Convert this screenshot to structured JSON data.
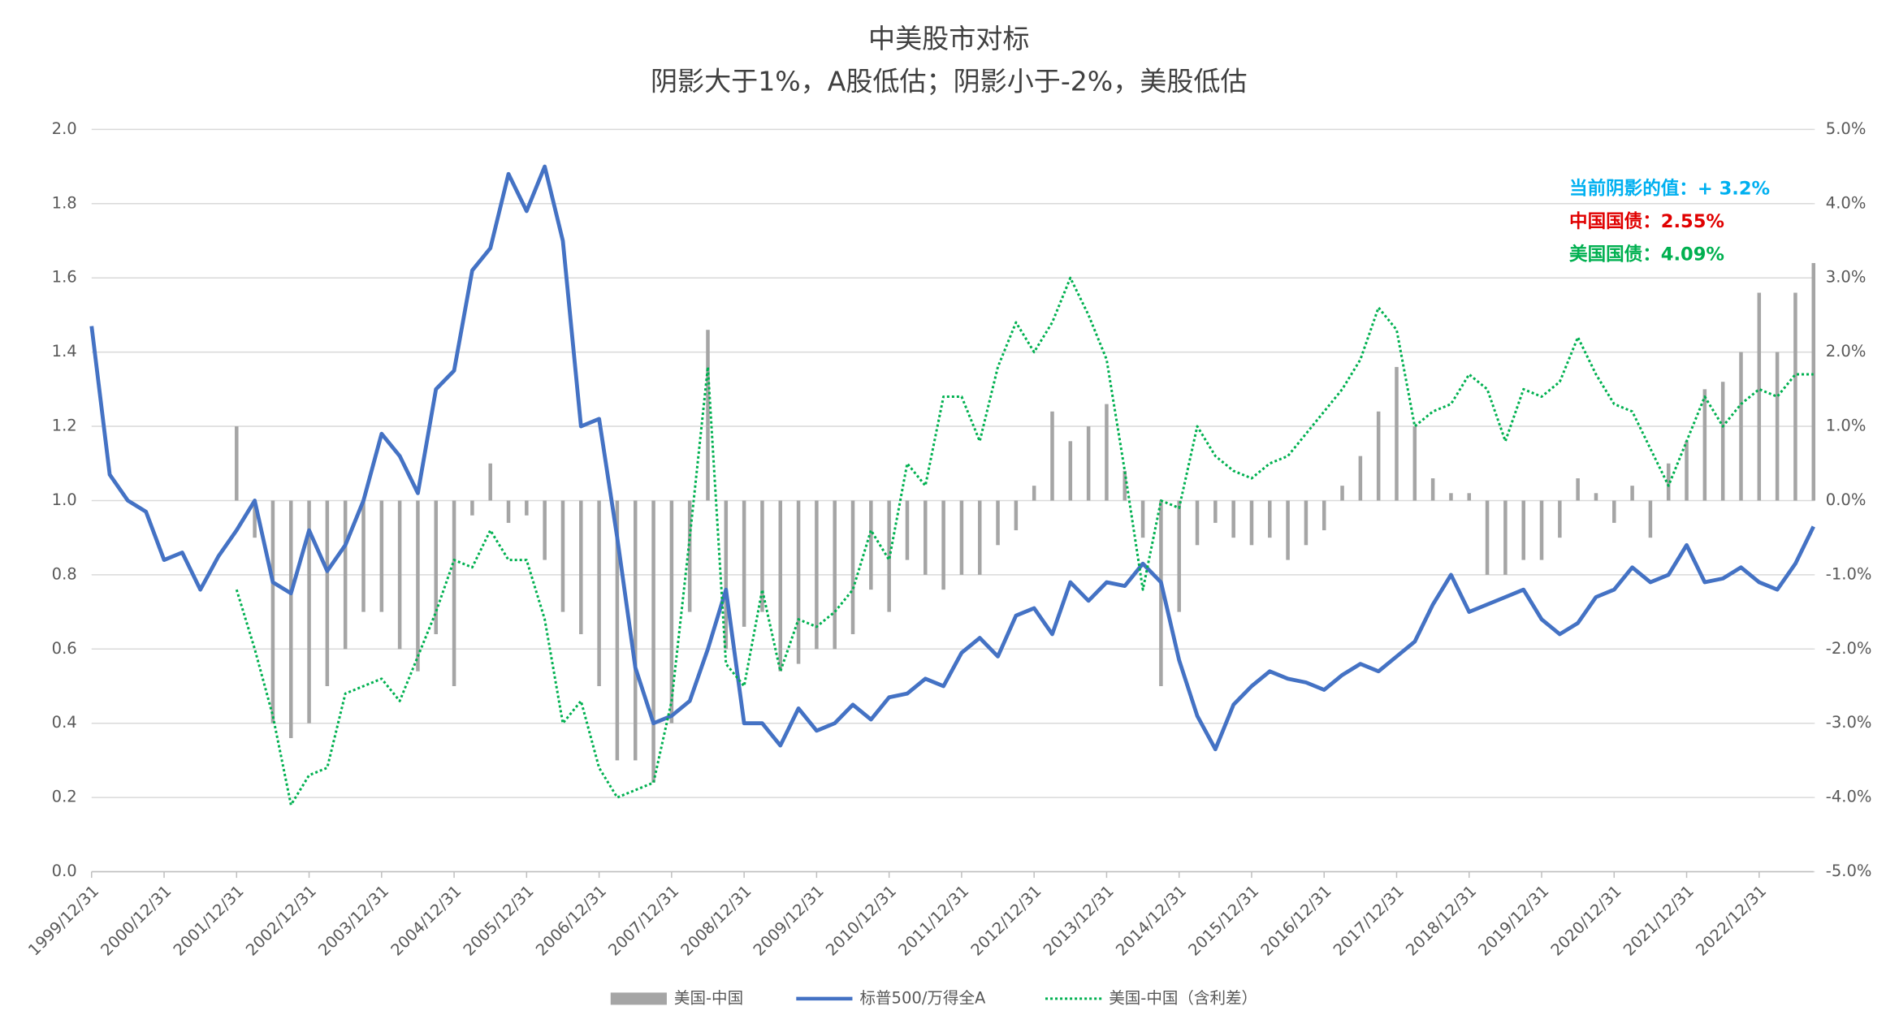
{
  "chart_data": {
    "type": "combo",
    "title": "中美股市对标",
    "subtitle": "阴影大于1%，A股低估；阴影小于-2%，美股低估",
    "annotations": [
      {
        "text": "当前阴影的值：+ 3.2%",
        "color": "#00b0f0"
      },
      {
        "text": "中国国债：2.55%",
        "color": "#e00000"
      },
      {
        "text": "美国国债：4.09%",
        "color": "#00b050"
      }
    ],
    "categories": [
      "1999/12/31",
      null,
      null,
      null,
      "2000/12/31",
      null,
      null,
      null,
      "2001/12/31",
      null,
      null,
      null,
      "2002/12/31",
      null,
      null,
      null,
      "2003/12/31",
      null,
      null,
      null,
      "2004/12/31",
      null,
      null,
      null,
      "2005/12/31",
      null,
      null,
      null,
      "2006/12/31",
      null,
      null,
      null,
      "2007/12/31",
      null,
      null,
      null,
      "2008/12/31",
      null,
      null,
      null,
      "2009/12/31",
      null,
      null,
      null,
      "2010/12/31",
      null,
      null,
      null,
      "2011/12/31",
      null,
      null,
      null,
      "2012/12/31",
      null,
      null,
      null,
      "2013/12/31",
      null,
      null,
      null,
      "2014/12/31",
      null,
      null,
      null,
      "2015/12/31",
      null,
      null,
      null,
      "2016/12/31",
      null,
      null,
      null,
      "2017/12/31",
      null,
      null,
      null,
      "2018/12/31",
      null,
      null,
      null,
      "2019/12/31",
      null,
      null,
      null,
      "2020/12/31",
      null,
      null,
      null,
      "2021/12/31",
      null,
      null,
      null,
      "2022/12/31",
      null,
      null,
      null
    ],
    "series": [
      {
        "name": "美国-中国",
        "kind": "bar",
        "axis": "y2",
        "color": "#a5a5a5",
        "values": [
          null,
          null,
          null,
          null,
          null,
          null,
          null,
          null,
          1.0,
          -0.5,
          -3.0,
          -3.2,
          -3.0,
          -2.5,
          -2.0,
          -1.5,
          -1.5,
          -2.0,
          -2.3,
          -1.8,
          -2.5,
          -0.2,
          0.5,
          -0.3,
          -0.2,
          -0.8,
          -1.5,
          -1.8,
          -2.5,
          -3.5,
          -3.5,
          -3.8,
          -3.0,
          -1.5,
          2.3,
          -2.0,
          -1.7,
          -1.5,
          -2.3,
          -2.2,
          -2.0,
          -2.0,
          -1.8,
          -1.2,
          -1.5,
          -0.8,
          -1.0,
          -1.2,
          -1.0,
          -1.0,
          -0.6,
          -0.4,
          0.2,
          1.2,
          0.8,
          1.0,
          1.3,
          0.4,
          -0.5,
          -2.5,
          -1.5,
          -0.6,
          -0.3,
          -0.5,
          -0.6,
          -0.5,
          -0.8,
          -0.6,
          -0.4,
          0.2,
          0.6,
          1.2,
          1.8,
          1.0,
          0.3,
          0.1,
          0.1,
          -1.0,
          -1.0,
          -0.8,
          -0.8,
          -0.5,
          0.3,
          0.1,
          -0.3,
          0.2,
          -0.5,
          0.5,
          0.8,
          1.5,
          1.6,
          2.0,
          2.8,
          2.0,
          2.8,
          3.2
        ]
      },
      {
        "name": "标普500/万得全A",
        "kind": "line",
        "color": "#4472c4",
        "values": [
          1.47,
          1.07,
          1.0,
          0.97,
          0.84,
          0.86,
          0.76,
          0.85,
          0.92,
          1.0,
          0.78,
          0.75,
          0.92,
          0.81,
          0.88,
          1.0,
          1.18,
          1.12,
          1.02,
          1.3,
          1.35,
          1.62,
          1.68,
          1.88,
          1.78,
          1.9,
          1.7,
          1.2,
          1.22,
          0.9,
          0.55,
          0.4,
          0.42,
          0.46,
          0.6,
          0.76,
          0.4,
          0.4,
          0.34,
          0.44,
          0.38,
          0.4,
          0.45,
          0.41,
          0.47,
          0.48,
          0.52,
          0.5,
          0.59,
          0.63,
          0.58,
          0.69,
          0.71,
          0.64,
          0.78,
          0.73,
          0.78,
          0.77,
          0.83,
          0.78,
          0.57,
          0.42,
          0.33,
          0.45,
          0.5,
          0.54,
          0.52,
          0.51,
          0.49,
          0.53,
          0.56,
          0.54,
          0.58,
          0.62,
          0.72,
          0.8,
          0.7,
          0.72,
          0.74,
          0.76,
          0.68,
          0.64,
          0.67,
          0.74,
          0.76,
          0.82,
          0.78,
          0.8,
          0.88,
          0.78,
          0.79,
          0.82,
          0.78,
          0.76,
          0.83,
          0.93
        ]
      },
      {
        "name": "美国-中国（含利差）",
        "kind": "dotted",
        "axis": "y2",
        "color": "#00b050",
        "values": [
          null,
          null,
          null,
          null,
          null,
          null,
          null,
          null,
          -1.2,
          -2.0,
          -2.9,
          -4.1,
          -3.7,
          -3.6,
          -2.6,
          -2.5,
          -2.4,
          -2.7,
          -2.1,
          -1.5,
          -0.8,
          -0.9,
          -0.4,
          -0.8,
          -0.8,
          -1.6,
          -3.0,
          -2.7,
          -3.6,
          -4.0,
          -3.9,
          -3.8,
          -2.7,
          -0.5,
          1.8,
          -2.2,
          -2.5,
          -1.2,
          -2.3,
          -1.6,
          -1.7,
          -1.5,
          -1.2,
          -0.4,
          -0.8,
          0.5,
          0.2,
          1.4,
          1.4,
          0.8,
          1.8,
          2.4,
          2.0,
          2.4,
          3.0,
          2.5,
          1.9,
          0.4,
          -1.2,
          0.0,
          -0.1,
          1.0,
          0.6,
          0.4,
          0.3,
          0.5,
          0.6,
          0.9,
          1.2,
          1.5,
          1.9,
          2.6,
          2.3,
          1.0,
          1.2,
          1.3,
          1.7,
          1.5,
          0.8,
          1.5,
          1.4,
          1.6,
          2.2,
          1.7,
          1.3,
          1.2,
          0.7,
          0.2,
          0.8,
          1.4,
          1.0,
          1.3,
          1.5,
          1.4,
          1.7,
          1.7
        ]
      }
    ],
    "ylim": [
      0,
      2
    ],
    "yticks": [
      {
        "value": 0,
        "label": "0.0"
      },
      0.2,
      0.4,
      0.6,
      0.8,
      {
        "value": 1,
        "label": "1.0"
      },
      1.2,
      1.4,
      1.6,
      1.8,
      {
        "value": 2,
        "label": "2.0"
      }
    ],
    "y2lim": [
      -5,
      5
    ],
    "y2ticks": [
      {
        "value": -5,
        "label": "-5.0%"
      },
      {
        "value": -4,
        "label": "-4.0%"
      },
      {
        "value": -3,
        "label": "-3.0%"
      },
      {
        "value": -2,
        "label": "-2.0%"
      },
      {
        "value": -1,
        "label": "-1.0%"
      },
      {
        "value": 0,
        "label": "0.0%"
      },
      {
        "value": 1,
        "label": "1.0%"
      },
      {
        "value": 2,
        "label": "2.0%"
      },
      {
        "value": 3,
        "label": "3.0%"
      },
      {
        "value": 4,
        "label": "4.0%"
      },
      {
        "value": 5,
        "label": "5.0%"
      }
    ],
    "grid": true
  }
}
